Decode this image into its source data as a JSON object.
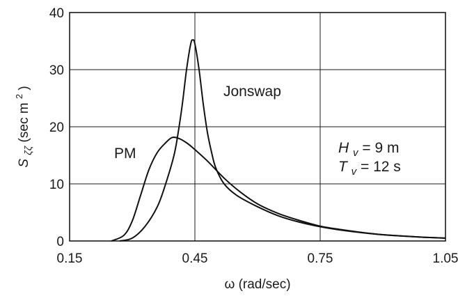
{
  "chart_data": {
    "type": "line",
    "title": "",
    "xlabel": "ω (rad/sec)",
    "ylabel": {
      "base": "S",
      "subscript": "ζζ",
      "unit_prefix": " (sec m",
      "unit_sup": "2",
      "unit_suffix": ")"
    },
    "xlim": [
      0.15,
      1.05
    ],
    "ylim": [
      0,
      40
    ],
    "xticks": [
      0.15,
      0.45,
      0.75,
      1.05
    ],
    "xtick_labels": [
      "0.15",
      "0.45",
      "0.75",
      "1.05"
    ],
    "yticks": [
      0,
      10,
      20,
      30,
      40
    ],
    "ytick_labels": [
      "0",
      "10",
      "20",
      "30",
      "40"
    ],
    "grid": true,
    "series": [
      {
        "name": "PM",
        "color": "#111111",
        "points": [
          [
            0.25,
            0
          ],
          [
            0.28,
            1.0
          ],
          [
            0.3,
            3.5
          ],
          [
            0.32,
            8.0
          ],
          [
            0.34,
            12.5
          ],
          [
            0.36,
            15.5
          ],
          [
            0.38,
            17.2
          ],
          [
            0.395,
            18.1
          ],
          [
            0.41,
            18.0
          ],
          [
            0.43,
            17.2
          ],
          [
            0.45,
            16.0
          ],
          [
            0.48,
            14.0
          ],
          [
            0.52,
            11.0
          ],
          [
            0.56,
            8.5
          ],
          [
            0.6,
            6.5
          ],
          [
            0.65,
            4.8
          ],
          [
            0.7,
            3.6
          ],
          [
            0.75,
            2.6
          ],
          [
            0.8,
            2.0
          ],
          [
            0.85,
            1.5
          ],
          [
            0.9,
            1.1
          ],
          [
            0.95,
            0.85
          ],
          [
            1.0,
            0.65
          ],
          [
            1.05,
            0.5
          ]
        ]
      },
      {
        "name": "Jonswap",
        "color": "#111111",
        "points": [
          [
            0.27,
            0
          ],
          [
            0.3,
            0.5
          ],
          [
            0.33,
            2.5
          ],
          [
            0.36,
            6.0
          ],
          [
            0.38,
            10.0
          ],
          [
            0.4,
            15.0
          ],
          [
            0.41,
            19.0
          ],
          [
            0.42,
            24.0
          ],
          [
            0.43,
            30.0
          ],
          [
            0.44,
            34.5
          ],
          [
            0.445,
            35.2
          ],
          [
            0.45,
            34.5
          ],
          [
            0.46,
            30.0
          ],
          [
            0.47,
            24.0
          ],
          [
            0.48,
            19.0
          ],
          [
            0.49,
            15.5
          ],
          [
            0.5,
            12.8
          ],
          [
            0.52,
            10.0
          ],
          [
            0.55,
            8.0
          ],
          [
            0.6,
            6.0
          ],
          [
            0.65,
            4.4
          ],
          [
            0.7,
            3.3
          ],
          [
            0.75,
            2.5
          ],
          [
            0.8,
            1.9
          ],
          [
            0.85,
            1.45
          ],
          [
            0.9,
            1.1
          ],
          [
            0.95,
            0.85
          ],
          [
            1.0,
            0.65
          ],
          [
            1.05,
            0.5
          ]
        ]
      }
    ],
    "annotations": {
      "pm_label": "PM",
      "jonswap_label": "Jonswap",
      "hv": {
        "symbol": "H",
        "sub": "v",
        "rest": " = 9 m"
      },
      "tv": {
        "symbol": "T",
        "sub": "v",
        "rest": " = 12 s"
      }
    }
  }
}
